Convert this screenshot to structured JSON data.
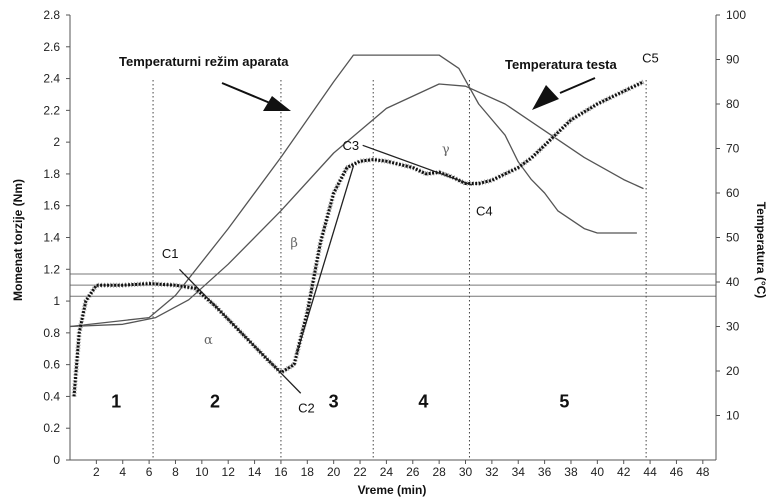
{
  "chart_data": {
    "type": "line",
    "xlabel": "Vreme (min)",
    "ylabel": "Momenat torzije (Nm)",
    "y2label": "Temperatura (°C)",
    "xlim": [
      0,
      49
    ],
    "ylim": [
      0,
      2.8
    ],
    "y2lim": [
      0,
      100
    ],
    "x_ticks": [
      "2",
      "4",
      "6",
      "8",
      "10",
      "12",
      "14",
      "16",
      "18",
      "20",
      "22",
      "24",
      "26",
      "28",
      "30",
      "32",
      "34",
      "36",
      "38",
      "40",
      "42",
      "44",
      "46",
      "48"
    ],
    "y_ticks": [
      "0",
      "0.2",
      "0.4",
      "0.6",
      "0.8",
      "1",
      "1.2",
      "1.4",
      "1.6",
      "1.8",
      "2",
      "2.2",
      "2.4",
      "2.6",
      "2.8"
    ],
    "y2_ticks": [
      "10",
      "20",
      "30",
      "40",
      "50",
      "60",
      "70",
      "80",
      "90",
      "100"
    ],
    "annotations": {
      "apparatus_label": "Temperaturni režim aparata",
      "dough_label": "Temperatura testa"
    },
    "points": [
      {
        "name": "C1",
        "x": 8.3,
        "y": 1.13
      },
      {
        "name": "C2",
        "x": 16.0,
        "y": 0.55
      },
      {
        "name": "C3",
        "x": 22.8,
        "y": 1.88
      },
      {
        "name": "C4",
        "x": 30.3,
        "y": 1.73
      },
      {
        "name": "C5",
        "x": 43.7,
        "y": 2.37
      }
    ],
    "phases": [
      {
        "label": "1",
        "x": 3.5
      },
      {
        "label": "2",
        "x": 11.0
      },
      {
        "label": "3",
        "x": 20.0
      },
      {
        "label": "4",
        "x": 26.8
      },
      {
        "label": "5",
        "x": 37.5
      }
    ],
    "phase_boundaries": [
      6.3,
      16.0,
      23.0,
      30.3,
      43.7
    ],
    "greek_labels": [
      {
        "text": "α",
        "x": 10.5,
        "y": 0.73
      },
      {
        "text": "β",
        "x": 17.0,
        "y": 1.34
      },
      {
        "text": "γ",
        "x": 28.5,
        "y": 1.93
      }
    ],
    "reference_lines": [
      1.17,
      1.1,
      1.03
    ],
    "series": [
      {
        "name": "Temperaturni režim aparata",
        "axis": "right",
        "x": [
          0,
          6.0,
          8,
          12,
          16,
          20,
          21.5,
          24,
          28,
          29.5,
          31,
          33,
          34,
          35,
          36,
          37,
          38,
          39,
          40,
          41,
          43
        ],
        "y": [
          30,
          32,
          37,
          52,
          68,
          85,
          91,
          91,
          91,
          88,
          80,
          73,
          67,
          63,
          60,
          56,
          54,
          52,
          51,
          51,
          51
        ]
      },
      {
        "name": "Temperatura testa",
        "axis": "right",
        "x": [
          0,
          4,
          6.5,
          9,
          12,
          16,
          20,
          24,
          28,
          30,
          33,
          36,
          39,
          42,
          43.5
        ],
        "y": [
          30,
          30.5,
          32,
          36,
          44,
          56,
          69,
          79,
          84.5,
          84,
          80,
          74,
          68,
          63,
          61
        ]
      },
      {
        "name": "Momenat torzije",
        "axis": "left",
        "x": [
          0.3,
          0.7,
          1.2,
          2,
          4,
          6,
          8,
          9.5,
          11,
          13,
          15,
          16,
          17,
          18,
          19,
          20,
          21,
          22,
          23,
          24,
          25,
          26,
          27,
          28,
          29,
          30,
          31,
          32,
          33,
          34,
          35,
          36,
          37,
          38,
          39,
          40,
          41,
          42,
          43.5
        ],
        "y": [
          0.4,
          0.8,
          1.0,
          1.1,
          1.1,
          1.11,
          1.1,
          1.08,
          0.97,
          0.8,
          0.63,
          0.55,
          0.6,
          0.93,
          1.37,
          1.68,
          1.84,
          1.88,
          1.89,
          1.88,
          1.86,
          1.84,
          1.8,
          1.81,
          1.78,
          1.74,
          1.74,
          1.76,
          1.8,
          1.84,
          1.9,
          1.98,
          2.06,
          2.14,
          2.19,
          2.24,
          2.28,
          2.32,
          2.38
        ]
      }
    ]
  }
}
